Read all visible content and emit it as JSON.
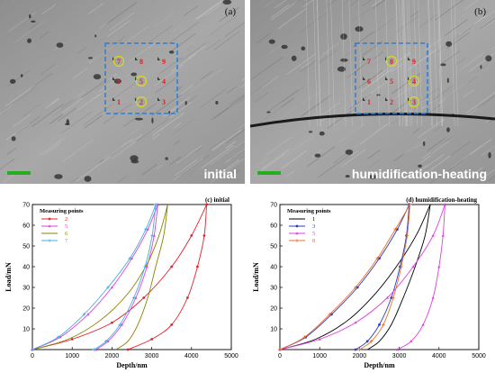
{
  "panels": [
    {
      "letter": "(a)",
      "caption": "initial",
      "grid_labels": [
        "7",
        "8",
        "9",
        "6",
        "5",
        "4",
        "1",
        "2",
        "3"
      ],
      "circled_points": [
        "7",
        "5",
        "2"
      ]
    },
    {
      "letter": "(b)",
      "caption": "humidification-heating",
      "grid_labels": [
        "7",
        "8",
        "9",
        "6",
        "5",
        "4",
        "1",
        "2",
        "3"
      ],
      "circled_points": [
        "8",
        "4",
        "3"
      ]
    }
  ],
  "chart_data": [
    {
      "type": "line",
      "title": "(c) initial",
      "xlabel": "Depth/nm",
      "ylabel": "Load/mN",
      "xlim": [
        0,
        5000
      ],
      "ylim": [
        0,
        70
      ],
      "xticks": [
        0,
        1000,
        2000,
        3000,
        4000,
        5000
      ],
      "yticks": [
        10,
        20,
        30,
        40,
        50,
        60,
        70
      ],
      "legend_title": "Measuring points",
      "legend_position": "top-left",
      "series": [
        {
          "name": "2",
          "color": "#e3242b",
          "marker": "dot",
          "loading": [
            [
              0,
              0
            ],
            [
              1000,
              5
            ],
            [
              2000,
              13
            ],
            [
              2800,
              25
            ],
            [
              3500,
              40
            ],
            [
              4000,
              55
            ],
            [
              4380,
              70
            ]
          ],
          "unloading": [
            [
              4380,
              70
            ],
            [
              4320,
              55
            ],
            [
              4150,
              40
            ],
            [
              3900,
              25
            ],
            [
              3500,
              12
            ],
            [
              3000,
              5
            ],
            [
              2400,
              0
            ]
          ]
        },
        {
          "name": "5",
          "color": "#e040e0",
          "marker": "triangle",
          "loading": [
            [
              0,
              0
            ],
            [
              700,
              6
            ],
            [
              1400,
              17
            ],
            [
              2000,
              30
            ],
            [
              2500,
              44
            ],
            [
              2900,
              58
            ],
            [
              3150,
              70
            ]
          ],
          "unloading": [
            [
              3150,
              70
            ],
            [
              3060,
              55
            ],
            [
              2880,
              40
            ],
            [
              2600,
              25
            ],
            [
              2250,
              12
            ],
            [
              1900,
              4
            ],
            [
              1600,
              0
            ]
          ]
        },
        {
          "name": "6",
          "color": "#8b8000",
          "marker": "none",
          "loading": [
            [
              0,
              0
            ],
            [
              900,
              5
            ],
            [
              1700,
              14
            ],
            [
              2400,
              27
            ],
            [
              2900,
              42
            ],
            [
              3200,
              56
            ],
            [
              3400,
              70
            ]
          ],
          "unloading": [
            [
              3400,
              70
            ],
            [
              3300,
              55
            ],
            [
              3100,
              40
            ],
            [
              2900,
              25
            ],
            [
              2650,
              12
            ],
            [
              2400,
              4
            ],
            [
              2100,
              0
            ]
          ]
        },
        {
          "name": "7",
          "color": "#40b0e0",
          "marker": "star",
          "loading": [
            [
              0,
              0
            ],
            [
              650,
              6
            ],
            [
              1300,
              17
            ],
            [
              1900,
              30
            ],
            [
              2450,
              44
            ],
            [
              2850,
              58
            ],
            [
              3100,
              70
            ]
          ],
          "unloading": [
            [
              3100,
              70
            ],
            [
              3010,
              55
            ],
            [
              2830,
              40
            ],
            [
              2550,
              25
            ],
            [
              2200,
              12
            ],
            [
              1850,
              4
            ],
            [
              1550,
              0
            ]
          ]
        }
      ]
    },
    {
      "type": "line",
      "title": "(d) humidification-heating",
      "xlabel": "Depth/nm",
      "ylabel": "Load/mN",
      "xlim": [
        0,
        5000
      ],
      "ylim": [
        0,
        70
      ],
      "xticks": [
        0,
        1000,
        2000,
        3000,
        4000,
        5000
      ],
      "yticks": [
        10,
        20,
        30,
        40,
        50,
        60,
        70
      ],
      "legend_title": "Measuring points",
      "legend_position": "top-left",
      "series": [
        {
          "name": "1",
          "color": "#000000",
          "marker": "none",
          "loading": [
            [
              0,
              0
            ],
            [
              900,
              5
            ],
            [
              1700,
              14
            ],
            [
              2400,
              27
            ],
            [
              3000,
              42
            ],
            [
              3450,
              56
            ],
            [
              3780,
              70
            ]
          ],
          "unloading": [
            [
              3780,
              70
            ],
            [
              3650,
              55
            ],
            [
              3400,
              40
            ],
            [
              3100,
              25
            ],
            [
              2800,
              12
            ],
            [
              2500,
              4
            ],
            [
              2200,
              0
            ]
          ]
        },
        {
          "name": "3",
          "color": "#2b3cc4",
          "marker": "dot",
          "loading": [
            [
              0,
              0
            ],
            [
              650,
              6
            ],
            [
              1300,
              17
            ],
            [
              1950,
              30
            ],
            [
              2500,
              44
            ],
            [
              2950,
              58
            ],
            [
              3250,
              70
            ]
          ],
          "unloading": [
            [
              3250,
              70
            ],
            [
              3180,
              55
            ],
            [
              3020,
              40
            ],
            [
              2800,
              25
            ],
            [
              2500,
              12
            ],
            [
              2200,
              4
            ],
            [
              1900,
              0
            ]
          ]
        },
        {
          "name": "5",
          "color": "#e040e0",
          "marker": "triangle",
          "loading": [
            [
              0,
              0
            ],
            [
              1000,
              5
            ],
            [
              1900,
              13
            ],
            [
              2700,
              25
            ],
            [
              3350,
              40
            ],
            [
              3850,
              55
            ],
            [
              4150,
              70
            ]
          ],
          "unloading": [
            [
              4150,
              70
            ],
            [
              4100,
              55
            ],
            [
              4000,
              40
            ],
            [
              3850,
              25
            ],
            [
              3600,
              12
            ],
            [
              3300,
              4
            ],
            [
              2950,
              0
            ]
          ]
        },
        {
          "name": "8",
          "color": "#e8702a",
          "marker": "star",
          "loading": [
            [
              0,
              0
            ],
            [
              620,
              6
            ],
            [
              1250,
              17
            ],
            [
              1900,
              30
            ],
            [
              2450,
              44
            ],
            [
              2900,
              58
            ],
            [
              3270,
              70
            ]
          ],
          "unloading": [
            [
              3270,
              70
            ],
            [
              3200,
              55
            ],
            [
              3050,
              40
            ],
            [
              2850,
              25
            ],
            [
              2600,
              12
            ],
            [
              2300,
              4
            ],
            [
              2000,
              0
            ]
          ]
        }
      ]
    }
  ]
}
